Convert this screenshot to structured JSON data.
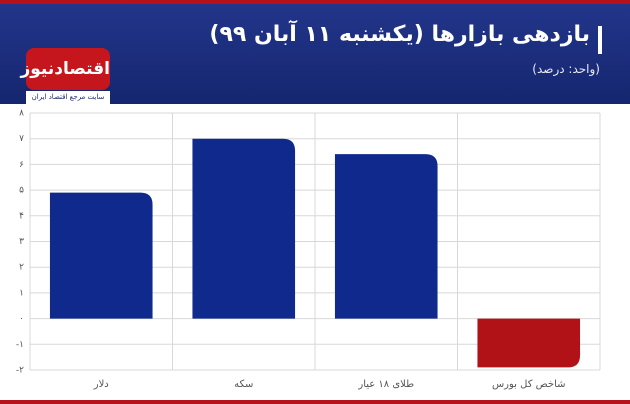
{
  "header": {
    "logo": "اقتصادنیوز",
    "tagline": "سایت مرجع اقتصاد ایران"
  },
  "chart_data": {
    "type": "bar",
    "title": "بازدهی بازارها (یکشنبه ۱۱ آبان ۹۹)",
    "subtitle": "(واحد: درصد)",
    "categories": [
      "دلار",
      "سکه",
      "طلای ۱۸ عیار",
      "شاخص کل بورس"
    ],
    "values": [
      4.9,
      7.0,
      6.4,
      -1.9
    ],
    "colors": [
      "#0f2a8c",
      "#0f2a8c",
      "#0f2a8c",
      "#b01217"
    ],
    "ylim": [
      -2,
      8
    ],
    "yticks": [
      {
        "value": -2,
        "label": "-۲"
      },
      {
        "value": -1,
        "label": "-۱"
      },
      {
        "value": 0,
        "label": "۰"
      },
      {
        "value": 1,
        "label": "۱"
      },
      {
        "value": 2,
        "label": "۲"
      },
      {
        "value": 3,
        "label": "۳"
      },
      {
        "value": 4,
        "label": "۴"
      },
      {
        "value": 5,
        "label": "۵"
      },
      {
        "value": 6,
        "label": "۶"
      },
      {
        "value": 7,
        "label": "۷"
      },
      {
        "value": 8,
        "label": "۸"
      }
    ],
    "grid": true
  }
}
